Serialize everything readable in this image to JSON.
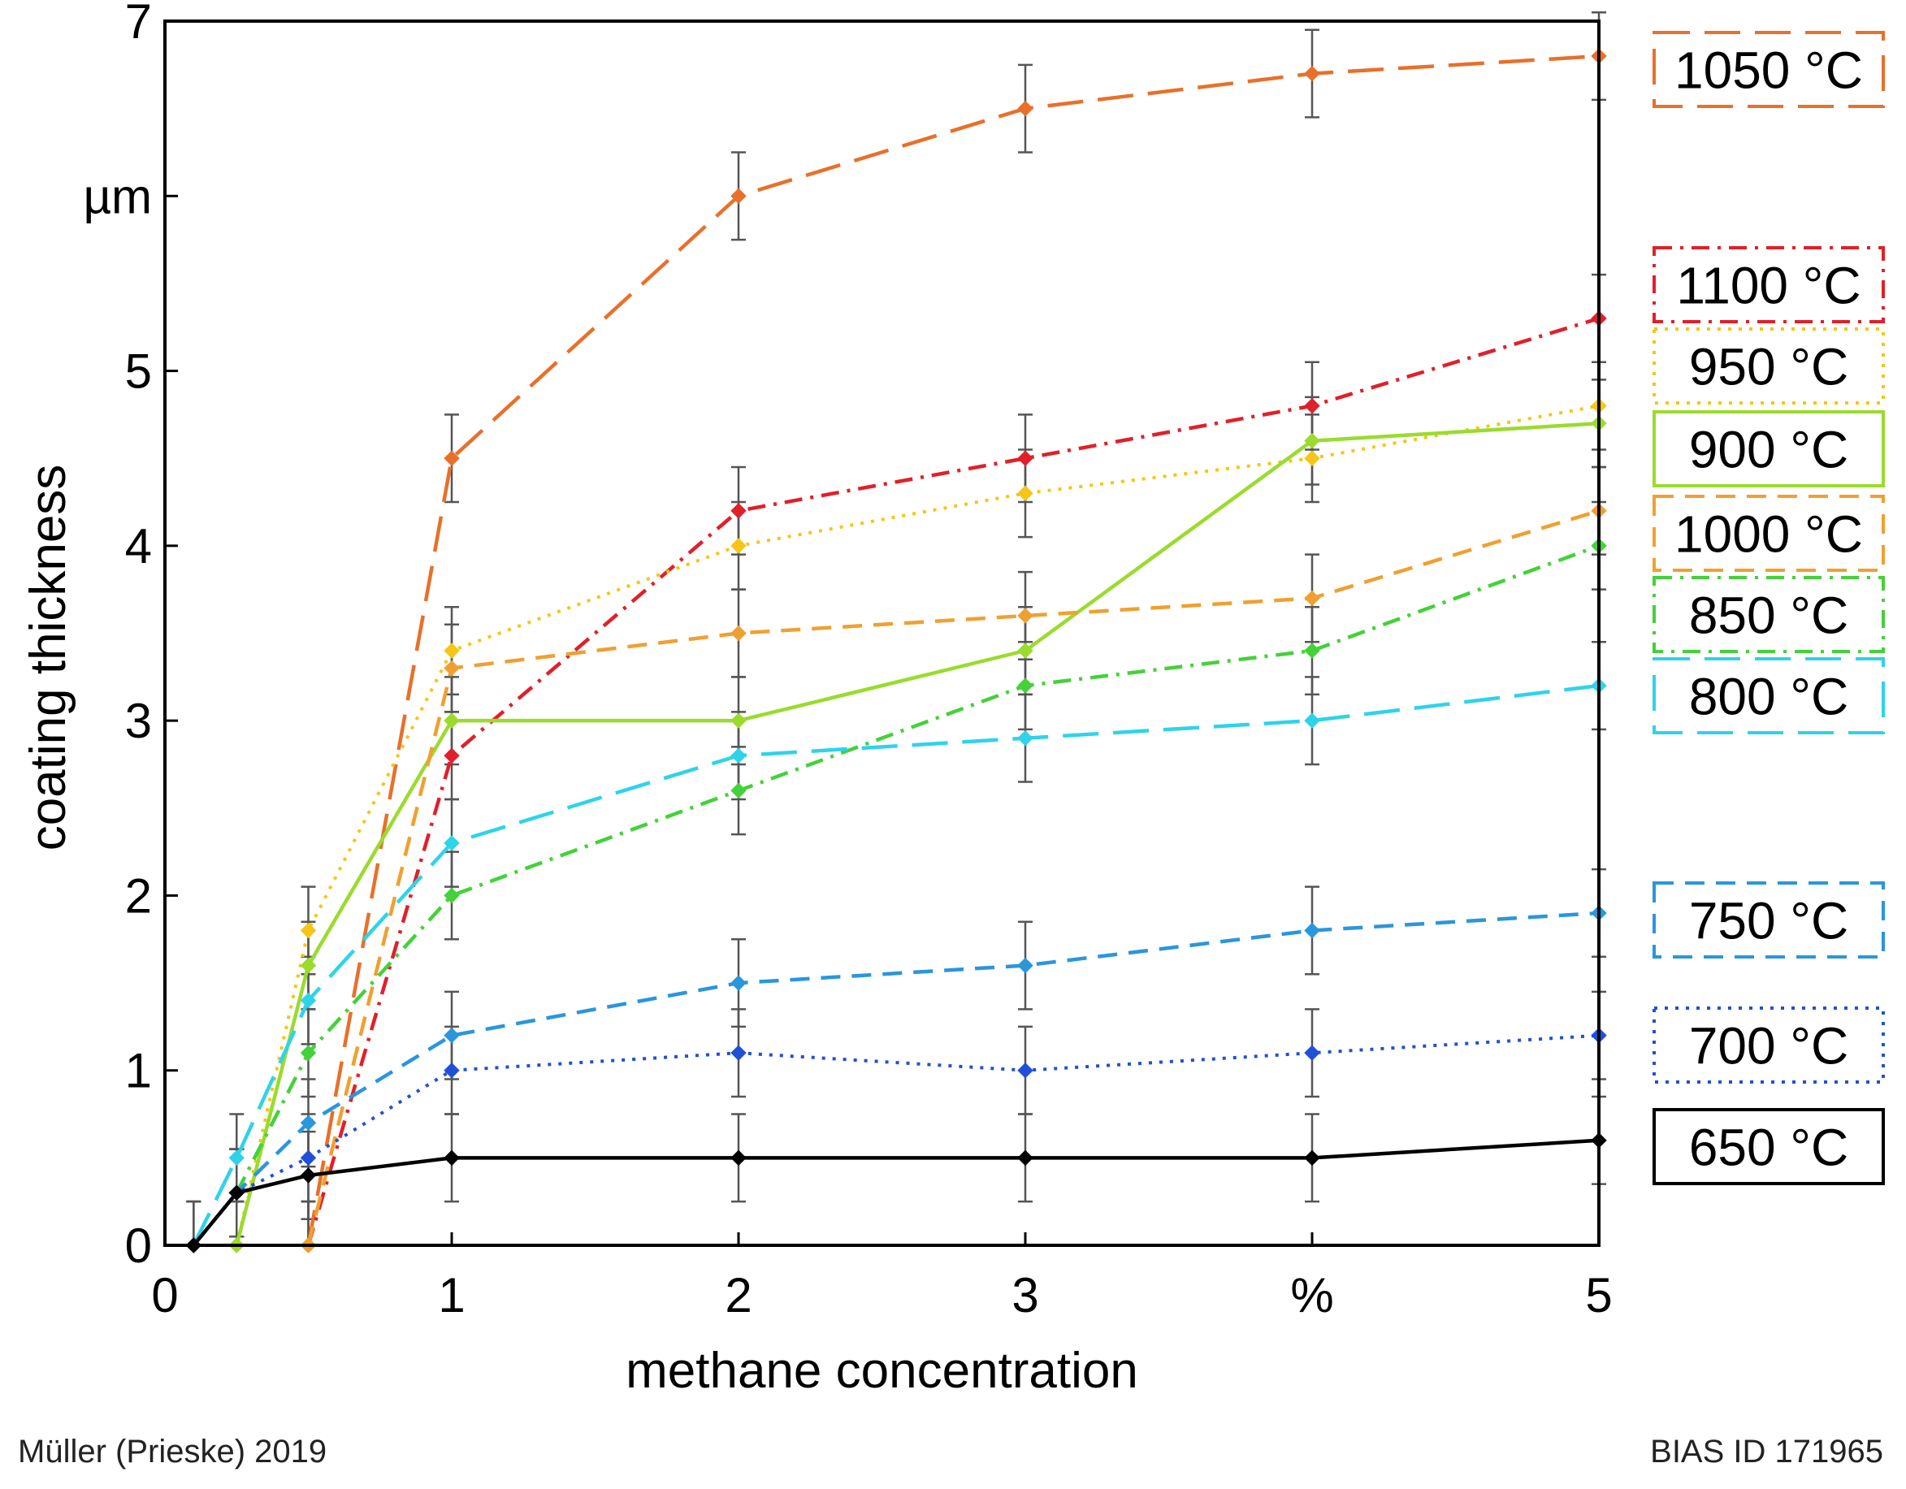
{
  "chart_data": {
    "type": "line",
    "title": "",
    "xlabel": "methane concentration",
    "ylabel": "coating thickness",
    "xlim": [
      0,
      5
    ],
    "ylim": [
      0,
      7
    ],
    "x_ticks": [
      {
        "value": 0,
        "label": "0"
      },
      {
        "value": 1,
        "label": "1"
      },
      {
        "value": 2,
        "label": "2"
      },
      {
        "value": 3,
        "label": "3"
      },
      {
        "value": 4,
        "label": "%"
      },
      {
        "value": 5,
        "label": "5"
      }
    ],
    "y_ticks": [
      {
        "value": 0,
        "label": "0"
      },
      {
        "value": 1,
        "label": "1"
      },
      {
        "value": 2,
        "label": "2"
      },
      {
        "value": 3,
        "label": "3"
      },
      {
        "value": 4,
        "label": "4"
      },
      {
        "value": 5,
        "label": "5"
      },
      {
        "value": 6,
        "label": "µm"
      },
      {
        "value": 7,
        "label": "7"
      }
    ],
    "error_bar": 0.25,
    "series": [
      {
        "name": "1050 °C",
        "color": "#E8702A",
        "style": "longdash",
        "x": [
          0.5,
          1,
          2,
          3,
          4,
          5
        ],
        "y": [
          0.0,
          4.5,
          6.0,
          6.5,
          6.7,
          6.8
        ]
      },
      {
        "name": "1100 °C",
        "color": "#E0202A",
        "style": "dashdot",
        "x": [
          0.5,
          1,
          2,
          3,
          4,
          5
        ],
        "y": [
          0.0,
          2.8,
          4.2,
          4.5,
          4.8,
          5.3
        ]
      },
      {
        "name": "950 °C",
        "color": "#F5C518",
        "style": "dotted",
        "x": [
          0.25,
          0.5,
          1,
          2,
          3,
          4,
          5
        ],
        "y": [
          0.0,
          1.8,
          3.4,
          4.0,
          4.3,
          4.5,
          4.8
        ]
      },
      {
        "name": "900 °C",
        "color": "#9ADB2E",
        "style": "solid",
        "x": [
          0.25,
          0.5,
          1,
          2,
          3,
          4,
          5
        ],
        "y": [
          0.0,
          1.6,
          3.0,
          3.0,
          3.4,
          4.6,
          4.7
        ]
      },
      {
        "name": "1000 °C",
        "color": "#F0A030",
        "style": "dashed",
        "x": [
          0.5,
          1,
          2,
          3,
          4,
          5
        ],
        "y": [
          0.0,
          3.3,
          3.5,
          3.6,
          3.7,
          4.2
        ]
      },
      {
        "name": "850 °C",
        "color": "#44D13A",
        "style": "dashdot",
        "x": [
          0.25,
          0.5,
          1,
          2,
          3,
          4,
          5
        ],
        "y": [
          0.3,
          1.1,
          2.0,
          2.6,
          3.2,
          3.4,
          4.0
        ]
      },
      {
        "name": "800 °C",
        "color": "#2ED3EA",
        "style": "longdash",
        "x": [
          0.1,
          0.25,
          0.5,
          1,
          2,
          3,
          4,
          5
        ],
        "y": [
          0.0,
          0.5,
          1.4,
          2.3,
          2.8,
          2.9,
          3.0,
          3.2
        ]
      },
      {
        "name": "750 °C",
        "color": "#2A96DC",
        "style": "dashed",
        "x": [
          0.1,
          0.25,
          0.5,
          1,
          2,
          3,
          4,
          5
        ],
        "y": [
          0.0,
          0.3,
          0.7,
          1.2,
          1.5,
          1.6,
          1.8,
          1.9
        ]
      },
      {
        "name": "700 °C",
        "color": "#2050D8",
        "style": "dotted",
        "x": [
          0.1,
          0.25,
          0.5,
          1,
          2,
          3,
          4,
          5
        ],
        "y": [
          0.0,
          0.3,
          0.5,
          1.0,
          1.1,
          1.0,
          1.1,
          1.2
        ]
      },
      {
        "name": "650 °C",
        "color": "#000000",
        "style": "solid",
        "x": [
          0.1,
          0.25,
          0.5,
          1,
          2,
          3,
          4,
          5
        ],
        "y": [
          0.0,
          0.3,
          0.4,
          0.5,
          0.5,
          0.5,
          0.5,
          0.6
        ]
      }
    ],
    "legend": {
      "placement": "right-outside",
      "entries_in_order": [
        "1050 °C",
        "1100 °C",
        "950 °C",
        "900 °C",
        "1000 °C",
        "850 °C",
        "800 °C",
        "750 °C",
        "700 °C",
        "650 °C"
      ]
    }
  },
  "credits": {
    "left": "Müller (Prieske) 2019",
    "right": "BIAS ID 171965"
  }
}
